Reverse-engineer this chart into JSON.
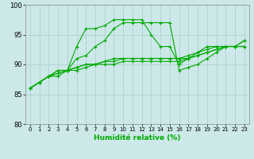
{
  "xlabel": "Humidité relative (%)",
  "background_color": "#cce8e8",
  "grid_color": "#aacccc",
  "line_color": "#00aa00",
  "xlim": [
    -0.5,
    23.5
  ],
  "ylim": [
    80,
    100
  ],
  "xticks": [
    0,
    1,
    2,
    3,
    4,
    5,
    6,
    7,
    8,
    9,
    10,
    11,
    12,
    13,
    14,
    15,
    16,
    17,
    18,
    19,
    20,
    21,
    22,
    23
  ],
  "yticks": [
    80,
    85,
    90,
    95,
    100
  ],
  "series": [
    [
      86,
      87,
      88,
      89,
      89,
      93,
      96,
      96,
      96.5,
      97.5,
      97.5,
      97.5,
      97.5,
      95,
      93,
      93,
      90,
      91,
      92,
      93,
      93,
      93,
      93,
      94
    ],
    [
      86,
      87,
      88,
      89,
      89,
      91,
      91.5,
      93,
      94,
      96,
      97,
      97,
      97,
      97,
      97,
      97,
      89,
      89.5,
      90,
      91,
      92,
      93,
      93,
      94
    ],
    [
      86,
      87,
      88,
      88.5,
      89,
      89.5,
      90,
      90,
      90.5,
      91,
      91,
      91,
      91,
      91,
      91,
      91,
      91,
      91.5,
      92,
      92.5,
      93,
      93,
      93,
      93
    ],
    [
      86,
      87,
      88,
      88.5,
      89,
      89.5,
      90,
      90,
      90.5,
      90.5,
      91,
      91,
      91,
      91,
      91,
      91,
      91,
      91,
      91.5,
      92,
      92.5,
      93,
      93,
      93
    ],
    [
      86,
      87,
      88,
      88,
      89,
      89,
      89.5,
      90,
      90,
      90,
      90.5,
      90.5,
      90.5,
      90.5,
      90.5,
      90.5,
      90.5,
      91,
      91.5,
      92,
      92.5,
      93,
      93,
      93
    ]
  ]
}
